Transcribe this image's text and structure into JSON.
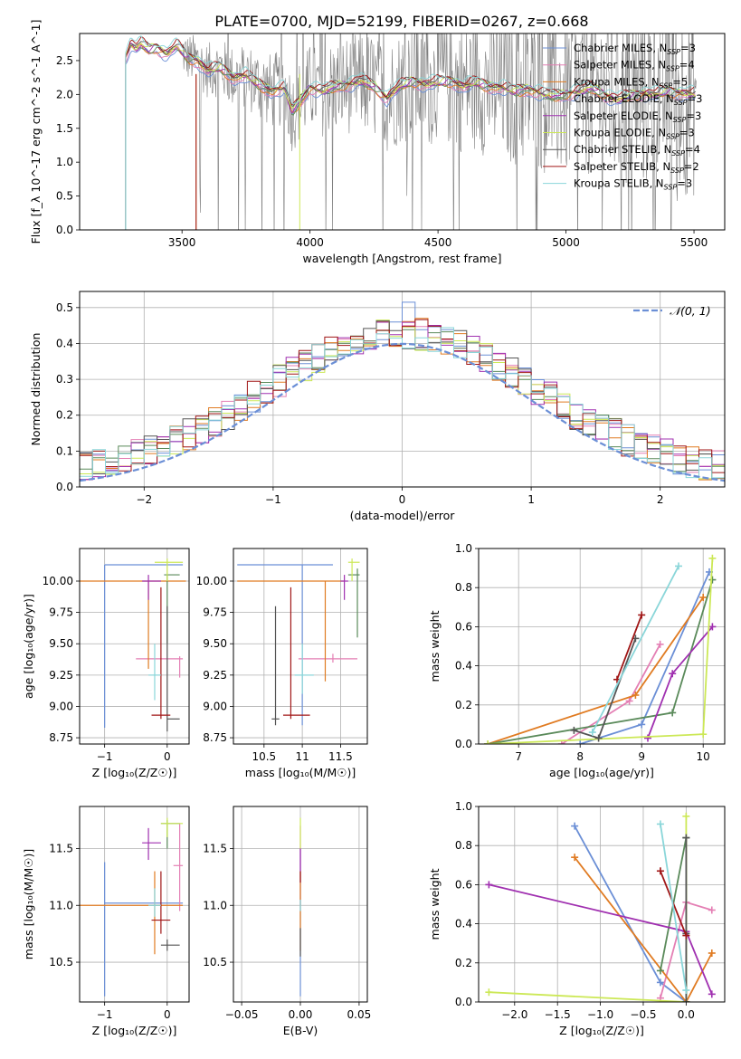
{
  "figure": {
    "title": "PLATE=0700, MJD=52199, FIBERID=0267, z=0.668"
  },
  "model_colors": {
    "chabrier_miles": "#6b8fd6",
    "salpeter_miles": "#e47fb4",
    "kroupa_miles": "#e07b22",
    "chabrier_elodie": "#5a8a5a",
    "salpeter_elodie": "#a030b0",
    "kroupa_elodie": "#cce856",
    "chabrier_stelib": "#555555",
    "salpeter_stelib": "#a01616",
    "kroupa_stelib": "#8ad6d9",
    "data": "#808080",
    "normal": "#6b8fd6"
  },
  "chart_data": [
    {
      "id": "spectrum",
      "type": "line",
      "xlabel": "wavelength [Angstrom, rest frame]",
      "ylabel": "Flux [f_λ 10^-17 erg cm^-2 s^-1 A^-1]",
      "xlim": [
        3100,
        5620
      ],
      "ylim": [
        0,
        2.9
      ],
      "xticks": [
        3500,
        4000,
        4500,
        5000,
        5500
      ],
      "yticks": [
        0.0,
        0.5,
        1.0,
        1.5,
        2.0,
        2.5
      ],
      "legend_position": "top-right",
      "legend": [
        {
          "label": "Chabrier MILES, N",
          "sub": "SSP",
          "tail": "=3",
          "color_key": "chabrier_miles"
        },
        {
          "label": "Salpeter MILES, N",
          "sub": "SSP",
          "tail": "=4",
          "color_key": "salpeter_miles"
        },
        {
          "label": "Kroupa MILES, N",
          "sub": "SSP",
          "tail": "=5",
          "color_key": "kroupa_miles"
        },
        {
          "label": "Chabrier ELODIE, N",
          "sub": "SSP",
          "tail": "=3",
          "color_key": "chabrier_elodie"
        },
        {
          "label": "Salpeter ELODIE, N",
          "sub": "SSP",
          "tail": "=3",
          "color_key": "salpeter_elodie"
        },
        {
          "label": "Kroupa ELODIE, N",
          "sub": "SSP",
          "tail": "=3",
          "color_key": "kroupa_elodie"
        },
        {
          "label": "Chabrier STELIB, N",
          "sub": "SSP",
          "tail": "=4",
          "color_key": "chabrier_stelib"
        },
        {
          "label": "Salpeter STELIB, N",
          "sub": "SSP",
          "tail": "=2",
          "color_key": "salpeter_stelib"
        },
        {
          "label": "Kroupa STELIB, N",
          "sub": "SSP",
          "tail": "=3",
          "color_key": "kroupa_stelib"
        }
      ],
      "model_start_wavelength": 3280,
      "data_start_wavelength": 3500,
      "model_envelope": [
        [
          3280,
          2.55
        ],
        [
          3300,
          2.75
        ],
        [
          3320,
          2.68
        ],
        [
          3340,
          2.75
        ],
        [
          3370,
          2.66
        ],
        [
          3400,
          2.7
        ],
        [
          3440,
          2.6
        ],
        [
          3480,
          2.72
        ],
        [
          3520,
          2.55
        ],
        [
          3560,
          2.5
        ],
        [
          3600,
          2.35
        ],
        [
          3650,
          2.4
        ],
        [
          3700,
          2.25
        ],
        [
          3750,
          2.28
        ],
        [
          3800,
          2.15
        ],
        [
          3850,
          2.05
        ],
        [
          3900,
          2.1
        ],
        [
          3930,
          1.75
        ],
        [
          3970,
          1.95
        ],
        [
          4000,
          2.1
        ],
        [
          4050,
          2.05
        ],
        [
          4100,
          2.12
        ],
        [
          4150,
          2.15
        ],
        [
          4200,
          2.2
        ],
        [
          4250,
          2.12
        ],
        [
          4300,
          1.95
        ],
        [
          4350,
          2.12
        ],
        [
          4400,
          2.2
        ],
        [
          4450,
          2.15
        ],
        [
          4500,
          2.18
        ],
        [
          4550,
          2.2
        ],
        [
          4600,
          2.12
        ],
        [
          4650,
          2.18
        ],
        [
          4700,
          2.12
        ],
        [
          4750,
          2.1
        ],
        [
          4800,
          2.05
        ],
        [
          4850,
          2.08
        ],
        [
          4900,
          2.02
        ],
        [
          4950,
          1.98
        ],
        [
          5000,
          2.0
        ],
        [
          5050,
          2.05
        ],
        [
          5100,
          2.1
        ],
        [
          5150,
          2.0
        ],
        [
          5200,
          1.92
        ],
        [
          5250,
          1.98
        ],
        [
          5300,
          2.02
        ],
        [
          5350,
          2.0
        ],
        [
          5400,
          2.05
        ],
        [
          5450,
          2.02
        ],
        [
          5510,
          2.0
        ]
      ]
    },
    {
      "id": "residuals",
      "type": "histogram",
      "xlabel": "(data-model)/error",
      "ylabel": "Normed distribution",
      "xlim": [
        -2.5,
        2.5
      ],
      "ylim": [
        0,
        0.545
      ],
      "xticks": [
        -2,
        -1,
        0,
        1,
        2
      ],
      "yticks": [
        0.0,
        0.1,
        0.2,
        0.3,
        0.4,
        0.5
      ],
      "legend": [
        {
          "label": "𝒩(0, 1)",
          "style": "dashed",
          "color_key": "normal"
        }
      ],
      "legend_position": "top-right",
      "bin_width": 0.1
    },
    {
      "id": "age_vs_Z",
      "type": "errorbar",
      "xlabel": "Z [log₁₀(Z/Z☉)]",
      "ylabel": "age  [log₁₀(age/yr)]",
      "xlim": [
        -1.4,
        0.35
      ],
      "ylim": [
        8.7,
        10.26
      ],
      "xticks": [
        -1,
        0
      ],
      "yticks": [
        8.75,
        9.0,
        9.25,
        9.5,
        9.75,
        10.0
      ],
      "points": [
        {
          "model": "chabrier_miles",
          "x": -1.0,
          "y": 10.13,
          "xlo": -1.0,
          "xhi": 0.25,
          "ylo": 8.83,
          "yhi": 10.13
        },
        {
          "model": "salpeter_miles",
          "x": 0.2,
          "y": 9.38,
          "xlo": -0.5,
          "xhi": 0.25,
          "ylo": 9.23,
          "yhi": 9.4
        },
        {
          "model": "kroupa_miles",
          "x": -0.3,
          "y": 10.0,
          "xlo": -1.4,
          "xhi": 0.3,
          "ylo": 9.3,
          "yhi": 10.0
        },
        {
          "model": "chabrier_elodie",
          "x": 0.0,
          "y": 10.05,
          "xlo": -0.05,
          "xhi": 0.2,
          "ylo": 9.5,
          "yhi": 10.05
        },
        {
          "model": "salpeter_elodie",
          "x": -0.3,
          "y": 10.0,
          "xlo": -0.4,
          "xhi": -0.1,
          "ylo": 9.85,
          "yhi": 10.05
        },
        {
          "model": "kroupa_elodie",
          "x": 0.0,
          "y": 10.15,
          "xlo": -0.2,
          "xhi": 0.25,
          "ylo": 10.0,
          "yhi": 10.18
        },
        {
          "model": "chabrier_stelib",
          "x": 0.0,
          "y": 8.9,
          "xlo": 0.0,
          "xhi": 0.2,
          "ylo": 8.8,
          "yhi": 9.8
        },
        {
          "model": "salpeter_stelib",
          "x": -0.1,
          "y": 8.93,
          "xlo": -0.25,
          "xhi": 0.05,
          "ylo": 8.9,
          "yhi": 9.95
        },
        {
          "model": "kroupa_stelib",
          "x": -0.2,
          "y": 9.25,
          "xlo": -0.3,
          "xhi": -0.1,
          "ylo": 9.05,
          "yhi": 9.5
        }
      ]
    },
    {
      "id": "age_vs_mass",
      "type": "errorbar",
      "xlabel": "mass [log₁₀(M/M☉)]",
      "ylabel": "",
      "xlim": [
        10.1,
        11.85
      ],
      "ylim": [
        8.7,
        10.26
      ],
      "xticks": [
        10.5,
        11.0,
        11.5
      ],
      "yticks": [
        8.75,
        9.0,
        9.25,
        9.5,
        9.75,
        10.0
      ],
      "points": [
        {
          "model": "chabrier_miles",
          "x": 11.0,
          "y": 10.13,
          "xlo": 10.15,
          "xhi": 11.4,
          "ylo": 8.85,
          "yhi": 10.13
        },
        {
          "model": "salpeter_miles",
          "x": 11.4,
          "y": 9.38,
          "xlo": 10.95,
          "xhi": 11.72,
          "ylo": 9.35,
          "yhi": 9.42
        },
        {
          "model": "kroupa_miles",
          "x": 11.3,
          "y": 10.0,
          "xlo": 10.15,
          "xhi": 11.55,
          "ylo": 9.2,
          "yhi": 10.0
        },
        {
          "model": "chabrier_elodie",
          "x": 11.72,
          "y": 10.05,
          "xlo": 11.6,
          "xhi": 11.75,
          "ylo": 9.55,
          "yhi": 10.1
        },
        {
          "model": "salpeter_elodie",
          "x": 11.55,
          "y": 10.0,
          "xlo": 11.5,
          "xhi": 11.6,
          "ylo": 9.85,
          "yhi": 10.05
        },
        {
          "model": "kroupa_elodie",
          "x": 11.65,
          "y": 10.15,
          "xlo": 11.6,
          "xhi": 11.75,
          "ylo": 10.0,
          "yhi": 10.18
        },
        {
          "model": "chabrier_stelib",
          "x": 10.65,
          "y": 8.9,
          "xlo": 10.6,
          "xhi": 10.7,
          "ylo": 8.85,
          "yhi": 9.8
        },
        {
          "model": "salpeter_stelib",
          "x": 10.85,
          "y": 8.93,
          "xlo": 10.75,
          "xhi": 11.1,
          "ylo": 8.9,
          "yhi": 9.95
        },
        {
          "model": "kroupa_stelib",
          "x": 11.0,
          "y": 9.25,
          "xlo": 10.9,
          "xhi": 11.15,
          "ylo": 9.1,
          "yhi": 9.5
        }
      ]
    },
    {
      "id": "weight_vs_age",
      "type": "line",
      "xlabel": "age  [log₁₀(age/yr)]",
      "ylabel": "mass weight",
      "xlim": [
        6.35,
        10.35
      ],
      "ylim": [
        0,
        1.0
      ],
      "xticks": [
        7,
        8,
        9,
        10
      ],
      "yticks": [
        0.0,
        0.2,
        0.4,
        0.6,
        0.8,
        1.0
      ],
      "series": [
        {
          "model": "chabrier_miles",
          "x": [
            8.0,
            9.0,
            10.1
          ],
          "y": [
            0.0,
            0.1,
            0.88
          ]
        },
        {
          "model": "salpeter_miles",
          "x": [
            7.7,
            8.8,
            9.3
          ],
          "y": [
            0.0,
            0.22,
            0.51
          ]
        },
        {
          "model": "kroupa_miles",
          "x": [
            6.5,
            8.9,
            10.0
          ],
          "y": [
            0.0,
            0.25,
            0.75
          ]
        },
        {
          "model": "chabrier_elodie",
          "x": [
            6.5,
            9.5,
            10.15
          ],
          "y": [
            0.0,
            0.16,
            0.84
          ]
        },
        {
          "model": "salpeter_elodie",
          "x": [
            9.1,
            9.5,
            10.15
          ],
          "y": [
            0.03,
            0.36,
            0.6
          ]
        },
        {
          "model": "kroupa_elodie",
          "x": [
            6.5,
            10.0,
            10.15
          ],
          "y": [
            0.0,
            0.05,
            0.95
          ]
        },
        {
          "model": "chabrier_stelib",
          "x": [
            7.9,
            8.3,
            8.9
          ],
          "y": [
            0.07,
            0.03,
            0.54
          ]
        },
        {
          "model": "salpeter_stelib",
          "x": [
            8.6,
            9.0
          ],
          "y": [
            0.33,
            0.66
          ]
        },
        {
          "model": "kroupa_stelib",
          "x": [
            8.2,
            9.6
          ],
          "y": [
            0.06,
            0.91
          ]
        }
      ]
    },
    {
      "id": "mass_vs_Z",
      "type": "errorbar",
      "xlabel": "Z [log₁₀(Z/Z☉)]",
      "ylabel": "mass [log₁₀(M/M☉)]",
      "xlim": [
        -1.4,
        0.35
      ],
      "ylim": [
        10.15,
        11.87
      ],
      "xticks": [
        -1,
        0
      ],
      "yticks": [
        10.5,
        11.0,
        11.5
      ],
      "points": [
        {
          "model": "chabrier_miles",
          "x": -1.0,
          "y": 11.02,
          "xlo": -1.0,
          "xhi": 0.25,
          "ylo": 10.2,
          "yhi": 11.38
        },
        {
          "model": "salpeter_miles",
          "x": 0.2,
          "y": 11.35,
          "xlo": 0.1,
          "xhi": 0.25,
          "ylo": 10.95,
          "yhi": 11.72
        },
        {
          "model": "kroupa_miles",
          "x": -0.2,
          "y": 11.0,
          "xlo": -1.4,
          "xhi": 0.25,
          "ylo": 10.57,
          "yhi": 11.3
        },
        {
          "model": "chabrier_elodie",
          "x": 0.0,
          "y": 11.72,
          "xlo": -0.1,
          "xhi": 0.2,
          "ylo": 11.5,
          "yhi": 11.75
        },
        {
          "model": "salpeter_elodie",
          "x": -0.3,
          "y": 11.55,
          "xlo": -0.4,
          "xhi": -0.1,
          "ylo": 11.4,
          "yhi": 11.68
        },
        {
          "model": "kroupa_elodie",
          "x": 0.0,
          "y": 11.72,
          "xlo": -0.1,
          "xhi": 0.25,
          "ylo": 11.6,
          "yhi": 11.77
        },
        {
          "model": "chabrier_stelib",
          "x": 0.0,
          "y": 10.65,
          "xlo": -0.1,
          "xhi": 0.2,
          "ylo": 10.6,
          "yhi": 10.7
        },
        {
          "model": "salpeter_stelib",
          "x": -0.1,
          "y": 10.87,
          "xlo": -0.25,
          "xhi": 0.05,
          "ylo": 10.75,
          "yhi": 11.3
        },
        {
          "model": "kroupa_stelib",
          "x": -0.2,
          "y": 11.0,
          "xlo": -0.3,
          "xhi": -0.1,
          "ylo": 10.9,
          "yhi": 11.15
        }
      ]
    },
    {
      "id": "mass_vs_ebv",
      "type": "errorbar",
      "xlabel": "E(B-V)",
      "ylabel": "",
      "xlim": [
        -0.057,
        0.057
      ],
      "ylim": [
        10.15,
        11.87
      ],
      "xticks": [
        -0.05,
        0.0,
        0.05
      ],
      "xtick_labels": [
        "−0.05",
        "0.00",
        "0.05"
      ],
      "yticks": [
        10.5,
        11.0,
        11.5
      ],
      "points": [
        {
          "model": "chabrier_miles",
          "x": 0.0,
          "y": 10.9,
          "ylo": 10.2,
          "yhi": 11.5
        },
        {
          "model": "salpeter_miles",
          "x": 0.0,
          "y": 11.35,
          "ylo": 11.0,
          "yhi": 11.7
        },
        {
          "model": "kroupa_miles",
          "x": 0.0,
          "y": 11.0,
          "ylo": 10.6,
          "yhi": 11.3
        },
        {
          "model": "salpeter_elodie",
          "x": 0.0,
          "y": 11.4,
          "ylo": 11.3,
          "yhi": 11.5
        },
        {
          "model": "kroupa_elodie",
          "x": 0.0,
          "y": 11.7,
          "ylo": 11.5,
          "yhi": 11.77
        },
        {
          "model": "chabrier_stelib",
          "x": 0.0,
          "y": 10.65,
          "ylo": 10.55,
          "yhi": 10.8
        },
        {
          "model": "salpeter_stelib",
          "x": 0.0,
          "y": 11.25,
          "ylo": 11.2,
          "yhi": 11.3
        },
        {
          "model": "kroupa_stelib",
          "x": 0.0,
          "y": 11.0,
          "ylo": 10.95,
          "yhi": 11.05
        }
      ]
    },
    {
      "id": "weight_vs_Z",
      "type": "line",
      "xlabel": "Z [log₁₀(Z/Z☉)]",
      "ylabel": "mass weight",
      "xlim": [
        -2.42,
        0.45
      ],
      "ylim": [
        0,
        1.0
      ],
      "xticks": [
        -2.0,
        -1.5,
        -1.0,
        -0.5,
        0.0
      ],
      "xtick_labels": [
        "−2.0",
        "−1.5",
        "−1.0",
        "−0.5",
        "0.0"
      ],
      "yticks": [
        0.0,
        0.2,
        0.4,
        0.6,
        0.8,
        1.0
      ],
      "series": [
        {
          "model": "chabrier_miles",
          "x": [
            -1.3,
            -0.3,
            0.0
          ],
          "y": [
            0.9,
            0.1,
            0.0
          ]
        },
        {
          "model": "salpeter_miles",
          "x": [
            -0.3,
            0.0,
            0.3
          ],
          "y": [
            0.02,
            0.51,
            0.47
          ]
        },
        {
          "model": "kroupa_miles",
          "x": [
            -1.3,
            0.0,
            0.3
          ],
          "y": [
            0.74,
            0.0,
            0.25
          ]
        },
        {
          "model": "chabrier_elodie",
          "x": [
            -0.3,
            0.0,
            0.0
          ],
          "y": [
            0.16,
            0.84,
            0.0
          ]
        },
        {
          "model": "salpeter_elodie",
          "x": [
            -2.3,
            0.0,
            0.3
          ],
          "y": [
            0.6,
            0.36,
            0.04
          ]
        },
        {
          "model": "kroupa_elodie",
          "x": [
            -2.3,
            0.0,
            0.0
          ],
          "y": [
            0.05,
            0.0,
            0.95
          ]
        },
        {
          "model": "chabrier_stelib",
          "x": [
            0.0,
            0.0,
            0.0
          ],
          "y": [
            0.84,
            0.35,
            0.0
          ]
        },
        {
          "model": "salpeter_stelib",
          "x": [
            -0.3,
            0.0
          ],
          "y": [
            0.67,
            0.34
          ]
        },
        {
          "model": "kroupa_stelib",
          "x": [
            -0.3,
            0.0
          ],
          "y": [
            0.91,
            0.06
          ]
        }
      ]
    }
  ]
}
